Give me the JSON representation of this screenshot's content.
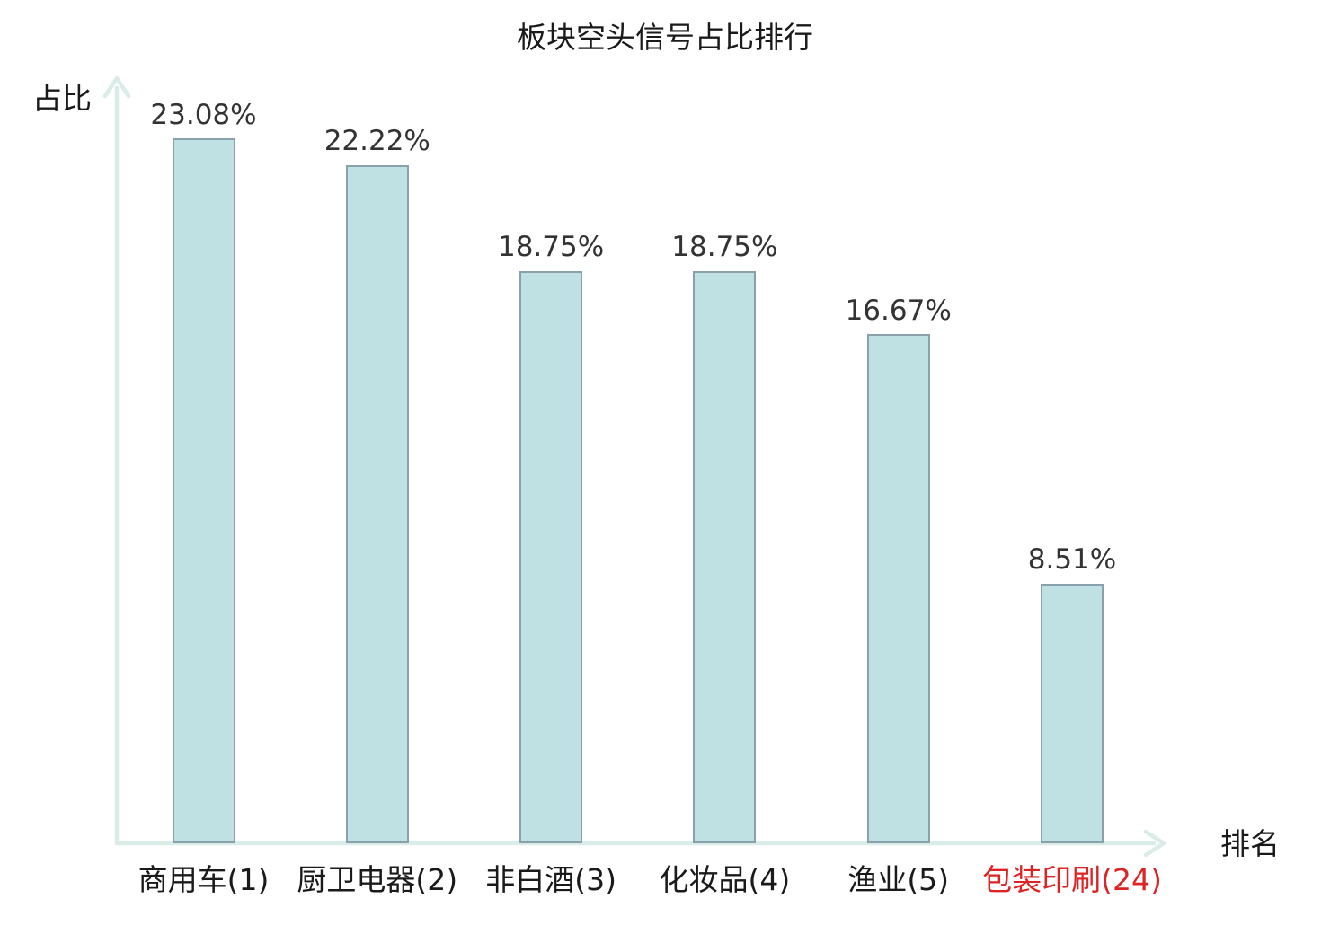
{
  "title": "板块空头信号占比排行",
  "axes": {
    "y_label": "占比",
    "x_label": "排名"
  },
  "chart_data": {
    "type": "bar",
    "title": "板块空头信号占比排行",
    "xlabel": "排名",
    "ylabel": "占比",
    "categories": [
      "商用车(1)",
      "厨卫电器(2)",
      "非白酒(3)",
      "化妆品(4)",
      "渔业(5)",
      "包装印刷(24)"
    ],
    "values": [
      23.08,
      22.22,
      18.75,
      18.75,
      16.67,
      8.51
    ],
    "value_labels": [
      "23.08%",
      "22.22%",
      "18.75%",
      "18.75%",
      "16.67%",
      "8.51%"
    ],
    "highlight_index": 5,
    "ylim": [
      0,
      25
    ],
    "grid": false,
    "legend": "none",
    "colors": {
      "bar_fill": "#bfe1e4",
      "bar_border": "#8aa0aa",
      "axis": "#d9ece8",
      "value_label": "#333333",
      "category_label": "#1a1a1a",
      "highlight_label": "#dd2323",
      "title": "#1a1a1a",
      "background": "#ffffff"
    }
  }
}
